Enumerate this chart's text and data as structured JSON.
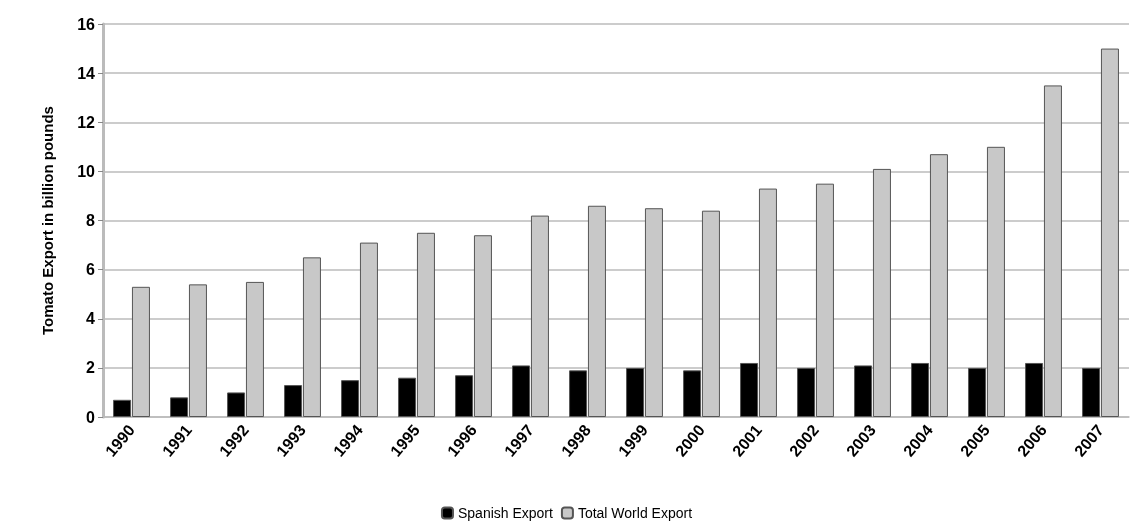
{
  "chart_data": {
    "type": "bar",
    "ylabel": "Tomato Export in billion pounds",
    "categories": [
      "1990",
      "1991",
      "1992",
      "1993",
      "1994",
      "1995",
      "1996",
      "1997",
      "1998",
      "1999",
      "2000",
      "2001",
      "2002",
      "2003",
      "2004",
      "2005",
      "2006",
      "2007"
    ],
    "series": [
      {
        "name": "Spanish Export",
        "color": "#000000",
        "values": [
          0.7,
          0.8,
          1.0,
          1.3,
          1.5,
          1.6,
          1.7,
          2.1,
          1.9,
          2.0,
          1.9,
          2.2,
          2.0,
          2.1,
          2.2,
          2.0,
          2.2,
          2.0
        ]
      },
      {
        "name": "Total World Export",
        "color": "#c8c8c8",
        "values": [
          5.3,
          5.4,
          5.5,
          6.5,
          7.1,
          7.5,
          7.4,
          8.2,
          8.6,
          8.5,
          8.4,
          9.3,
          9.5,
          10.1,
          10.7,
          11.0,
          13.5,
          15.0
        ]
      }
    ],
    "ylim": [
      0,
      16
    ],
    "yticks": [
      0,
      2,
      4,
      6,
      8,
      10,
      12,
      14,
      16
    ],
    "grid": "y",
    "legend": "bottom"
  }
}
